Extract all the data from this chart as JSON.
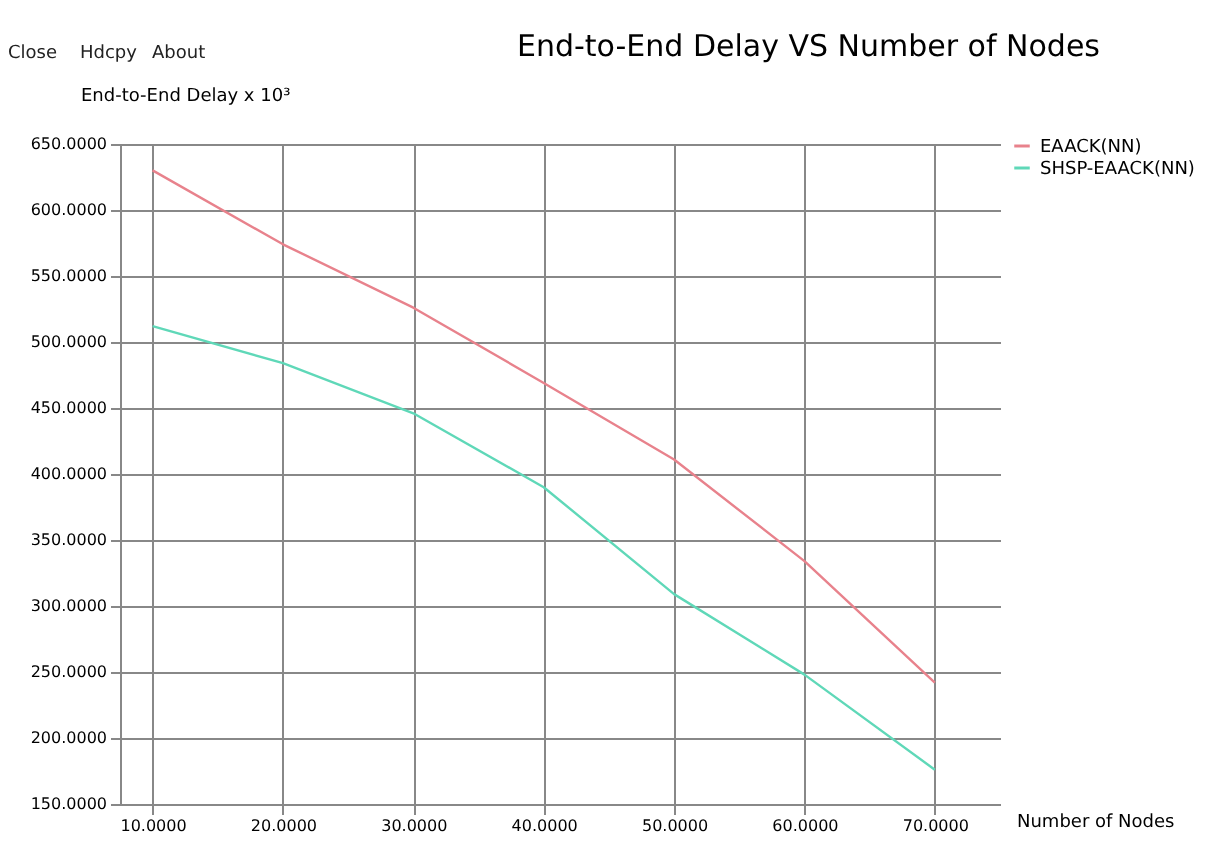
{
  "chart_data": {
    "type": "line",
    "title": "End-to-End Delay VS Number of Nodes",
    "xlabel": "Number of Nodes",
    "ylabel": "End-to-End Delay x 10³",
    "annotations": [
      "Close",
      "Hdcpy",
      "About"
    ],
    "x": [
      10,
      20,
      30,
      40,
      50,
      60,
      70
    ],
    "series": [
      {
        "name": "EAACK(NN)",
        "color": "#e8828c",
        "values": [
          630,
          574,
          526,
          469,
          411,
          334,
          242
        ]
      },
      {
        "name": "SHSP-EAACK(NN)",
        "color": "#5fd8b8",
        "values": [
          512,
          484,
          446,
          390,
          309,
          248,
          176
        ]
      }
    ],
    "xlim": [
      7.5,
      75
    ],
    "ylim": [
      150,
      650
    ],
    "xticks": [
      {
        "value": 10,
        "label": "10.0000"
      },
      {
        "value": 20,
        "label": "20.0000"
      },
      {
        "value": 30,
        "label": "30.0000"
      },
      {
        "value": 40,
        "label": "40.0000"
      },
      {
        "value": 50,
        "label": "50.0000"
      },
      {
        "value": 60,
        "label": "60.0000"
      },
      {
        "value": 70,
        "label": "70.0000"
      }
    ],
    "yticks": [
      {
        "value": 150,
        "label": "150.0000"
      },
      {
        "value": 200,
        "label": "200.0000"
      },
      {
        "value": 250,
        "label": "250.0000"
      },
      {
        "value": 300,
        "label": "300.0000"
      },
      {
        "value": 350,
        "label": "350.0000"
      },
      {
        "value": 400,
        "label": "400.0000"
      },
      {
        "value": 450,
        "label": "450.0000"
      },
      {
        "value": 500,
        "label": "500.0000"
      },
      {
        "value": 550,
        "label": "550.0000"
      },
      {
        "value": 600,
        "label": "600.0000"
      },
      {
        "value": 650,
        "label": "650.0000"
      }
    ],
    "grid": true,
    "legend": "top right",
    "marker": "none",
    "line_style": "solid"
  }
}
